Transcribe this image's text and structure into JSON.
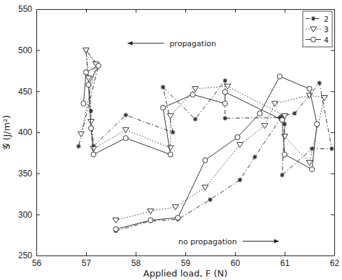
{
  "chart_data": {
    "type": "line",
    "x_label": "Applied load, F (N)",
    "y_label": "𝒢 (J/m²)",
    "xlim": [
      56,
      62
    ],
    "ylim": [
      250,
      550
    ],
    "xticks": [
      56,
      57,
      58,
      59,
      60,
      61,
      62
    ],
    "yticks": [
      250,
      300,
      350,
      400,
      450,
      500,
      550
    ],
    "grid": false,
    "legend": "top-right",
    "annotations": [
      {
        "text": "propagation",
        "x": 59.15,
        "y": 505,
        "arrow": "left"
      },
      {
        "text": "no propagation",
        "x": 59.45,
        "y": 264,
        "arrow": "right"
      }
    ],
    "series": [
      {
        "name": "2",
        "color": "#333333",
        "marker": "asterisk",
        "line_style": "dashdot",
        "x": [
          57.6,
          58.3,
          58.85,
          59.5,
          60.1,
          60.4,
          60.95,
          61.2,
          61.7,
          61.95,
          61.55,
          60.95,
          61.0,
          60.9,
          59.8,
          59.8,
          59.2,
          58.55,
          58.75,
          57.8,
          57.15,
          57.1,
          57.0,
          57.25,
          56.85
        ],
        "values": [
          280,
          292,
          294,
          318,
          342,
          370,
          420,
          423,
          460,
          380,
          380,
          348,
          410,
          418,
          417,
          463,
          416,
          455,
          400,
          421,
          383,
          426,
          500,
          481,
          383
        ]
      },
      {
        "name": "3",
        "color": "#333333",
        "marker": "triangle-down",
        "line_style": "dotted",
        "x": [
          57.6,
          58.3,
          58.8,
          59.4,
          60.1,
          60.6,
          60.8,
          61.5,
          61.8,
          61.5,
          61.0,
          61.0,
          59.85,
          59.2,
          58.7,
          58.7,
          57.8,
          57.15,
          57.1,
          57.05,
          57.0,
          57.2,
          56.9
        ],
        "values": [
          293,
          304,
          309,
          333,
          385,
          408,
          435,
          445,
          442,
          363,
          395,
          420,
          456,
          453,
          420,
          381,
          403,
          380,
          413,
          466,
          500,
          483,
          398
        ]
      },
      {
        "name": "4",
        "color": "#333333",
        "marker": "circle",
        "line_style": "solid",
        "x": [
          57.6,
          58.3,
          58.85,
          59.4,
          60.05,
          60.5,
          60.9,
          61.5,
          61.65,
          61.55,
          61.0,
          60.95,
          59.8,
          59.8,
          59.15,
          58.55,
          58.7,
          57.8,
          57.15,
          57.1,
          57.05,
          57.25,
          57.0,
          56.95
        ],
        "values": [
          282,
          293,
          296,
          366,
          394,
          423,
          468,
          453,
          410,
          355,
          373,
          415,
          449,
          435,
          446,
          430,
          373,
          393,
          373,
          405,
          458,
          481,
          473,
          435
        ]
      }
    ]
  }
}
